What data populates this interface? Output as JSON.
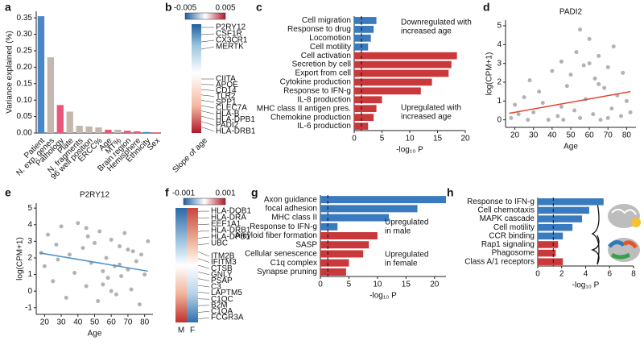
{
  "chart_data": [
    {
      "type": "bar",
      "panel": "a",
      "ylabel": "Variance explained (%)",
      "categories": [
        "Patient",
        "N. exp. genes",
        "Pathology",
        "Plate",
        "N. fragments",
        "96 well position",
        "ERCC%",
        "Age",
        "MT%",
        "Brain region",
        "Hemisphere",
        "Ethnicity",
        "Sex"
      ],
      "values": [
        0.355,
        0.23,
        0.085,
        0.065,
        0.022,
        0.02,
        0.017,
        0.01,
        0.01,
        0.007,
        0.005,
        0.003,
        0.002
      ],
      "colors": [
        "#4a86c8",
        "#c4b7ad",
        "#e8577a",
        "#c4b7ad",
        "#c4b7ad",
        "#c4b7ad",
        "#c4b7ad",
        "#e8577a",
        "#c4b7ad",
        "#e8577a",
        "#e8577a",
        "#4a86c8",
        "#e8577a"
      ],
      "label_colors": [
        "#4a86c8",
        "#111111",
        "#e05a3a",
        "#111111",
        "#111111",
        "#111111",
        "#111111",
        "#e05a3a",
        "#111111",
        "#e05a3a",
        "#e05a3a",
        "#4a86c8",
        "#e05a3a"
      ],
      "ylim": [
        0,
        0.37
      ],
      "yticks": [
        {
          "value": 0,
          "label": "0.00"
        },
        {
          "value": 0.05,
          "label": "0.05"
        },
        {
          "value": 0.1,
          "label": "0.10"
        },
        {
          "value": 0.15,
          "label": "0.15"
        },
        {
          "value": 0.2,
          "label": "0.20"
        },
        {
          "value": 0.25,
          "label": "0.25"
        },
        {
          "value": 0.3,
          "label": "0.30"
        },
        {
          "value": 0.35,
          "label": "0.35"
        }
      ]
    },
    {
      "type": "heatmap",
      "panel": "b",
      "ylabel": "Slope of age",
      "clim": [
        -0.005,
        0.005
      ],
      "cticks": [
        -0.005,
        0.005
      ],
      "genes": [
        "P2RY12",
        "CSF1R",
        "CX3CR1",
        "MERTK",
        "CIITA",
        "APOE",
        "CD14",
        "TLR2",
        "SPP1",
        "CLEC7A",
        "HLA-B",
        "HLA-DPB1",
        "PADI2",
        "HLA-DRB1"
      ]
    },
    {
      "type": "barh",
      "panel": "c",
      "xlabel": "-log₁₀ P",
      "threshold": 1.3,
      "categories": [
        "Cell migration",
        "Response to drug",
        "Locomotion",
        "Cell motility",
        "Cell activation",
        "Secretion by cell",
        "Export from cell",
        "Cytokine production",
        "Response to IFN-g",
        "IL-8 production",
        "MHC class II antigen pres.",
        "Chemokine production",
        "IL-6 production"
      ],
      "values": [
        4,
        3.5,
        3,
        2.5,
        18.5,
        17.5,
        17,
        14,
        12,
        5,
        4,
        3.5,
        2.5
      ],
      "colors": [
        "#3a7abf",
        "#3a7abf",
        "#3a7abf",
        "#3a7abf",
        "#c9383a",
        "#c9383a",
        "#c9383a",
        "#c9383a",
        "#c9383a",
        "#c9383a",
        "#c9383a",
        "#c9383a",
        "#c9383a"
      ],
      "annotations": [
        {
          "lines": [
            "Downregulated with",
            "increased age"
          ],
          "color": "#3a7abf"
        },
        {
          "lines": [
            "Upregulated with",
            "increased age"
          ],
          "color": "#c9383a"
        }
      ],
      "xlim": [
        0,
        20
      ],
      "xticks": [
        0,
        5,
        10,
        15,
        20
      ]
    },
    {
      "type": "scatter",
      "panel": "d",
      "title": "PADI2",
      "xlabel": "Age",
      "ylabel": "log(CPM+1)",
      "trend_color": "#e0452f",
      "x": [
        18,
        20,
        22,
        25,
        27,
        28,
        30,
        33,
        35,
        38,
        40,
        43,
        45,
        46,
        48,
        50,
        52,
        53,
        55,
        57,
        58,
        60,
        62,
        63,
        65,
        66,
        68,
        70,
        72,
        73,
        75,
        77,
        78,
        80,
        82,
        45,
        55,
        65,
        70,
        60
      ],
      "y": [
        0.1,
        0.8,
        0.3,
        1.2,
        0.0,
        2.1,
        0.4,
        1.5,
        0.9,
        0.0,
        2.6,
        0.2,
        3.1,
        0.0,
        1.8,
        2.4,
        0.5,
        3.6,
        0.1,
        2.9,
        1.1,
        4.3,
        0.3,
        2.2,
        3.4,
        0.0,
        1.7,
        2.8,
        0.6,
        3.9,
        1.3,
        0.2,
        2.5,
        1.0,
        0.4,
        0.7,
        4.8,
        1.9,
        0.1,
        3.0
      ],
      "trend": {
        "x": [
          17,
          82
        ],
        "y": [
          0.35,
          1.5
        ]
      },
      "xlim": [
        15,
        85
      ],
      "xticks": [
        20,
        30,
        40,
        50,
        60,
        70,
        80
      ],
      "ylim": [
        -0.4,
        5.3
      ],
      "yticks": [
        0,
        1,
        2,
        3,
        4,
        5
      ]
    },
    {
      "type": "scatter",
      "panel": "e",
      "title": "P2RY12",
      "xlabel": "Age",
      "ylabel": "log(CPM+1)",
      "trend_color": "#4a90c8",
      "x": [
        18,
        20,
        22,
        25,
        27,
        28,
        30,
        33,
        35,
        38,
        40,
        43,
        45,
        46,
        48,
        50,
        52,
        53,
        55,
        57,
        58,
        60,
        62,
        63,
        65,
        66,
        68,
        70,
        72,
        73,
        75,
        77,
        78,
        80,
        82,
        45,
        55,
        65,
        70,
        60
      ],
      "y": [
        2.3,
        1.5,
        3.4,
        0.6,
        2.8,
        1.9,
        3.9,
        -0.4,
        2.2,
        1.1,
        4.1,
        2.6,
        0.3,
        3.3,
        1.7,
        2.9,
        -0.6,
        3.6,
        1.2,
        2.0,
        0.8,
        3.1,
        1.5,
        -0.2,
        2.7,
        0.9,
        3.5,
        1.3,
        0.1,
        2.4,
        1.8,
        -0.8,
        2.2,
        1.0,
        3.0,
        3.8,
        0.4,
        1.6,
        2.5,
        0.0
      ],
      "trend": {
        "x": [
          17,
          82
        ],
        "y": [
          2.3,
          1.2
        ]
      },
      "xlim": [
        15,
        85
      ],
      "xticks": [
        20,
        30,
        40,
        50,
        60,
        70,
        80
      ],
      "ylim": [
        -1.4,
        5.3
      ],
      "yticks": [
        -1,
        0,
        1,
        2,
        3,
        4,
        5
      ]
    },
    {
      "type": "heatmap2",
      "panel": "f",
      "columns": [
        "M",
        "F"
      ],
      "clim": [
        -0.001,
        0.001
      ],
      "cticks": [
        -0.001,
        0.001
      ],
      "genes": [
        "HLA-DQB1",
        "HLA-DRA",
        "EEF1A1",
        "HLA-DRB1",
        "HLA-DPB1",
        "UBC",
        "ITM2B",
        "IFITM3",
        "CTSB",
        "GNLY",
        "PSAP",
        "C3",
        "LAPTM5",
        "C1QC",
        "B2M",
        "C1QA",
        "FCGR3A"
      ]
    },
    {
      "type": "barh",
      "panel": "g",
      "xlabel": "-log₁₀ P",
      "threshold": 1.3,
      "categories": [
        "Axon guidance",
        "focal adhesion",
        "MHC class II",
        "Response to IFN-g",
        "Amyloid fiber formation",
        "SASP",
        "Cellular senescence",
        "C1q complex",
        "Synapse pruning"
      ],
      "values": [
        22,
        17,
        12,
        3,
        10,
        8.5,
        7.5,
        5,
        4.5
      ],
      "colors": [
        "#3a7abf",
        "#3a7abf",
        "#3a7abf",
        "#3a7abf",
        "#c9383a",
        "#c9383a",
        "#c9383a",
        "#c9383a",
        "#c9383a"
      ],
      "annotations": [
        {
          "lines": [
            "Upregulated",
            "in male"
          ],
          "color": "#3a7abf"
        },
        {
          "lines": [
            "Upregulated",
            "in female"
          ],
          "color": "#c9383a"
        }
      ],
      "xlim": [
        0,
        22
      ],
      "xticks": [
        0,
        5,
        10,
        15,
        20
      ]
    },
    {
      "type": "barh",
      "panel": "h",
      "xlabel": "-log₁₀ P",
      "threshold": 1.3,
      "categories": [
        "Response to IFN-g",
        "Cell chemotaxis",
        "MAPK cascade",
        "Cell motility",
        "CCR binding",
        "Rap1 signaling",
        "Phagosome",
        "Class A/1 receptors"
      ],
      "values": [
        5.5,
        4.3,
        3.7,
        2.9,
        2.1,
        1.7,
        1.5,
        2.1
      ],
      "colors": [
        "#3a7abf",
        "#3a7abf",
        "#3a7abf",
        "#3a7abf",
        "#3a7abf",
        "#c9383a",
        "#c9383a",
        "#c9383a"
      ],
      "xlim": [
        0,
        8
      ],
      "xticks": [
        0,
        2,
        4,
        6,
        8
      ]
    }
  ]
}
